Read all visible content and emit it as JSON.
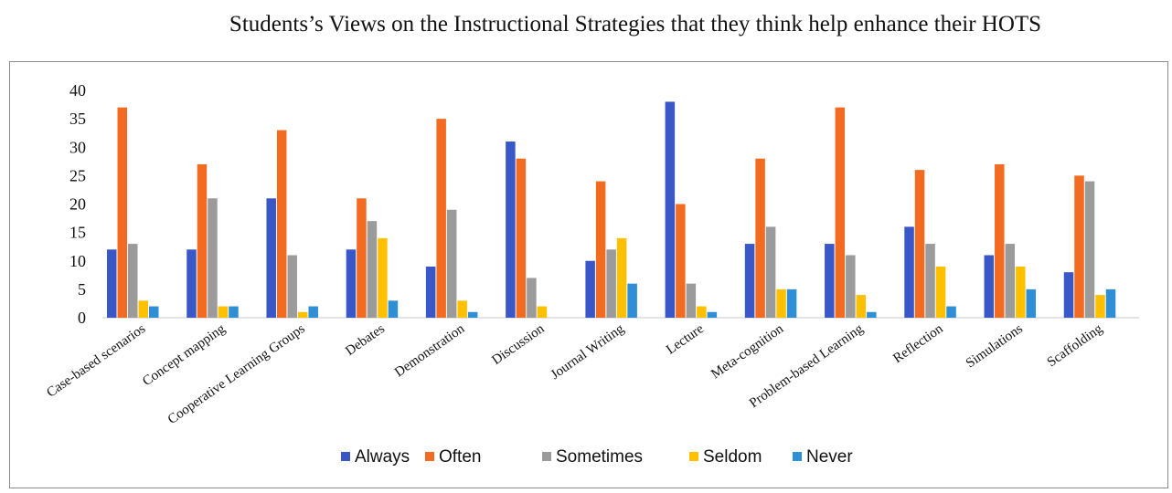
{
  "chart_data": {
    "type": "bar",
    "title": "Students’s Views on the Instructional Strategies that they think help enhance their HOTS",
    "xlabel": "",
    "ylabel": "",
    "ylim": [
      0,
      40
    ],
    "yticks": [
      0,
      5,
      10,
      15,
      20,
      25,
      30,
      35,
      40
    ],
    "grid": false,
    "legend_position": "bottom",
    "categories": [
      "Case-based scenarios",
      "Concept mapping",
      "Cooperative Learning Groups",
      "Debates",
      "Demonstration",
      "Discussion",
      "Journal Writing",
      "Lecture",
      "Meta-cognition",
      "Problem-based Learning",
      "Reflection",
      "Simulations",
      "Scaffolding"
    ],
    "series": [
      {
        "name": "Always",
        "color": "#3a57c8",
        "values": [
          12,
          12,
          21,
          12,
          9,
          31,
          10,
          38,
          13,
          13,
          16,
          11,
          8
        ]
      },
      {
        "name": "Often",
        "color": "#f26b21",
        "values": [
          37,
          27,
          33,
          21,
          35,
          28,
          24,
          20,
          28,
          37,
          26,
          27,
          25
        ]
      },
      {
        "name": "Sometimes",
        "color": "#9b9b9b",
        "values": [
          13,
          21,
          11,
          17,
          19,
          7,
          12,
          6,
          16,
          11,
          13,
          13,
          24
        ]
      },
      {
        "name": "Seldom",
        "color": "#ffc000",
        "values": [
          3,
          2,
          1,
          14,
          3,
          2,
          14,
          2,
          5,
          4,
          9,
          9,
          4
        ]
      },
      {
        "name": "Never",
        "color": "#2f8fd6",
        "values": [
          2,
          2,
          2,
          3,
          1,
          0,
          6,
          1,
          5,
          1,
          2,
          5,
          5
        ]
      }
    ]
  }
}
